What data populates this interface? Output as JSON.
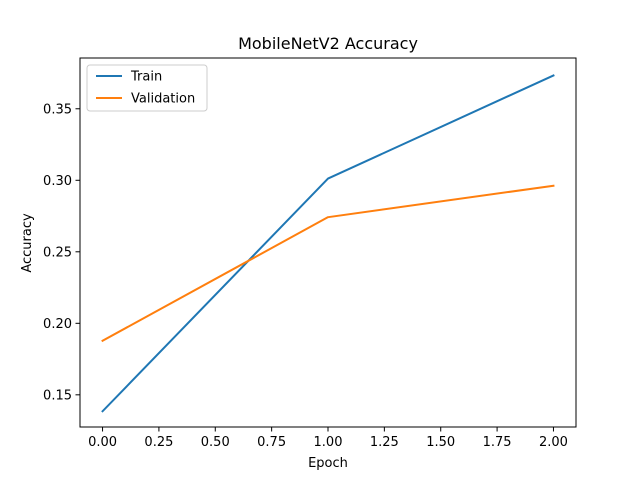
{
  "chart_data": {
    "type": "line",
    "title": "MobileNetV2 Accuracy",
    "xlabel": "Epoch",
    "ylabel": "Accuracy",
    "x": [
      0.0,
      1.0,
      2.0
    ],
    "xlim": [
      -0.1,
      2.1
    ],
    "ylim": [
      0.1275,
      0.3855
    ],
    "xticks": [
      0.0,
      0.25,
      0.5,
      0.75,
      1.0,
      1.25,
      1.5,
      1.75,
      2.0
    ],
    "xtick_labels": [
      "0.00",
      "0.25",
      "0.50",
      "0.75",
      "1.00",
      "1.25",
      "1.50",
      "1.75",
      "2.00"
    ],
    "yticks": [
      0.15,
      0.2,
      0.25,
      0.3,
      0.35
    ],
    "ytick_labels": [
      "0.15",
      "0.20",
      "0.25",
      "0.30",
      "0.35"
    ],
    "grid": false,
    "legend_position": "upper-left",
    "series": [
      {
        "name": "Train",
        "color": "#1f77b4",
        "values": [
          0.1385,
          0.3012,
          0.3733
        ]
      },
      {
        "name": "Validation",
        "color": "#ff7f0e",
        "values": [
          0.1878,
          0.2742,
          0.2962
        ]
      }
    ]
  }
}
